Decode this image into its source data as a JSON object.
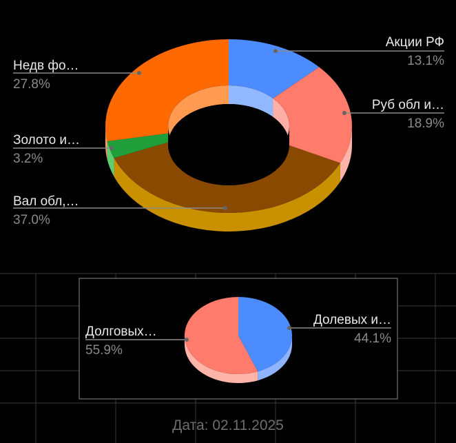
{
  "colors": {
    "background": "#000000",
    "gridline": "#3a3a3a",
    "label_name": "#e8e8e8",
    "label_value": "#8a8a8a",
    "leader": "#8c8c8c",
    "date_text": "#6e6e6e"
  },
  "chart_data": [
    {
      "type": "pie",
      "style": "3d-donut",
      "legend": "none",
      "slices": [
        {
          "label": "Акции РФ",
          "value": 13.1,
          "value_label": "13.1%",
          "color": "#4d8cff",
          "side_color": "#8fb4ff",
          "inner_color": "#92b8ff"
        },
        {
          "label": "Руб обл и…",
          "value": 18.9,
          "value_label": "18.9%",
          "color": "#ff7b6b",
          "side_color": "#ffb4aa",
          "inner_color": "#ffb0a6"
        },
        {
          "label": "Вал обл,…",
          "value": 37.0,
          "value_label": "37.0%",
          "color": "#8a4900",
          "side_color": "#c99000",
          "inner_color": "#a35a00"
        },
        {
          "label": "Золото и…",
          "value": 3.2,
          "value_label": "3.2%",
          "color": "#1f9e3a",
          "side_color": "#5fce72",
          "inner_color": "#34b04c"
        },
        {
          "label": "Недв фо…",
          "value": 27.8,
          "value_label": "27.8%",
          "color": "#ff6a00",
          "side_color": "#ffa060",
          "inner_color": "#ff9a50"
        }
      ]
    },
    {
      "type": "pie",
      "style": "3d-pie",
      "legend": "none",
      "slices": [
        {
          "label": "Долевых и…",
          "value": 44.1,
          "value_label": "44.1%",
          "color": "#4d8cff",
          "side_color": "#8fb4ff"
        },
        {
          "label": "Долговых…",
          "value": 55.9,
          "value_label": "55.9%",
          "color": "#ff7b6b",
          "side_color": "#ffb4aa"
        }
      ]
    }
  ],
  "footer": {
    "date_label": "Дата:",
    "date_value": "02.11.2025"
  }
}
